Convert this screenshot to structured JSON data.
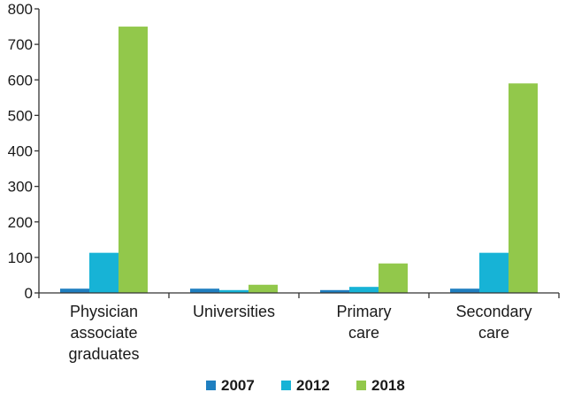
{
  "chart_data": {
    "type": "bar",
    "title": "",
    "xlabel": "",
    "ylabel": "",
    "ylim": [
      0,
      800
    ],
    "yticks": [
      0,
      100,
      200,
      300,
      400,
      500,
      600,
      700,
      800
    ],
    "grid": false,
    "legend_position": "bottom",
    "categories": [
      [
        "Physician",
        "associate",
        "graduates"
      ],
      [
        "Universities"
      ],
      [
        "Primary",
        "care"
      ],
      [
        "Secondary",
        "care"
      ]
    ],
    "series": [
      {
        "name": "2007",
        "color": "#1f7fc0",
        "values": [
          12,
          12,
          8,
          12
        ]
      },
      {
        "name": "2012",
        "color": "#17b3d6",
        "values": [
          113,
          8,
          17,
          113
        ]
      },
      {
        "name": "2018",
        "color": "#92c84b",
        "values": [
          750,
          23,
          83,
          590
        ]
      }
    ]
  }
}
